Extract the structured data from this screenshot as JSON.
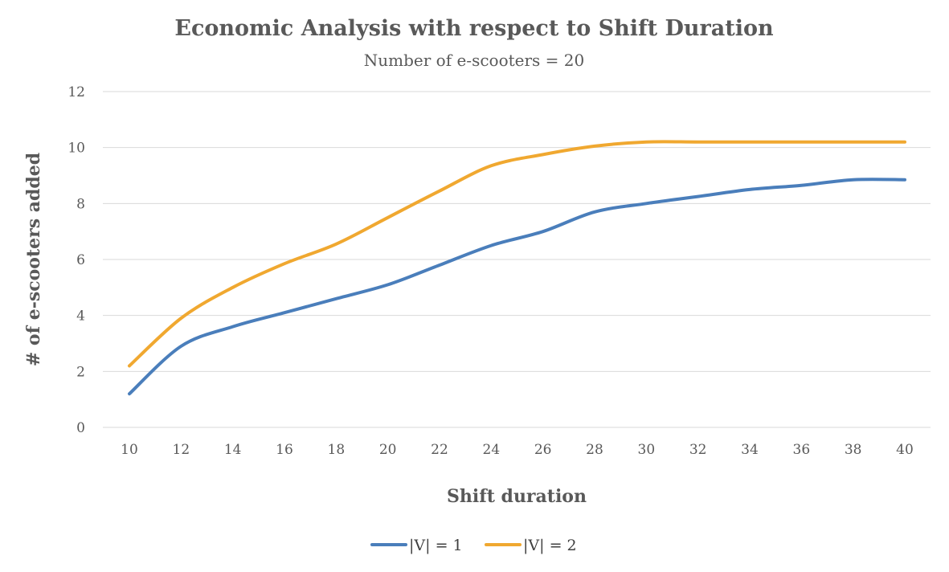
{
  "chart_data": {
    "type": "line",
    "title": "Economic Analysis with respect to Shift Duration",
    "subtitle": "Number of e-scooters = 20",
    "xlabel": "Shift duration",
    "ylabel": "# of e-scooters added",
    "x": [
      10,
      12,
      14,
      16,
      18,
      20,
      22,
      24,
      26,
      28,
      30,
      32,
      34,
      36,
      38,
      40
    ],
    "xticks": [
      "10",
      "12",
      "14",
      "16",
      "18",
      "20",
      "22",
      "24",
      "26",
      "28",
      "30",
      "32",
      "34",
      "36",
      "38",
      "40"
    ],
    "yticks": [
      "0",
      "2",
      "4",
      "6",
      "8",
      "10",
      "12"
    ],
    "ylim": [
      0,
      12
    ],
    "grid": true,
    "legend_position": "bottom",
    "series": [
      {
        "name": "|V| = 1",
        "color": "#4a7ebb",
        "values": [
          1.2,
          2.9,
          3.6,
          4.1,
          4.6,
          5.1,
          5.8,
          6.5,
          7.0,
          7.7,
          8.0,
          8.25,
          8.5,
          8.65,
          8.85,
          8.85
        ]
      },
      {
        "name": "|V| = 2",
        "color": "#f0a830",
        "values": [
          2.2,
          3.9,
          5.0,
          5.85,
          6.55,
          7.5,
          8.45,
          9.35,
          9.75,
          10.05,
          10.2,
          10.2,
          10.2,
          10.2,
          10.2,
          10.2
        ]
      }
    ]
  }
}
